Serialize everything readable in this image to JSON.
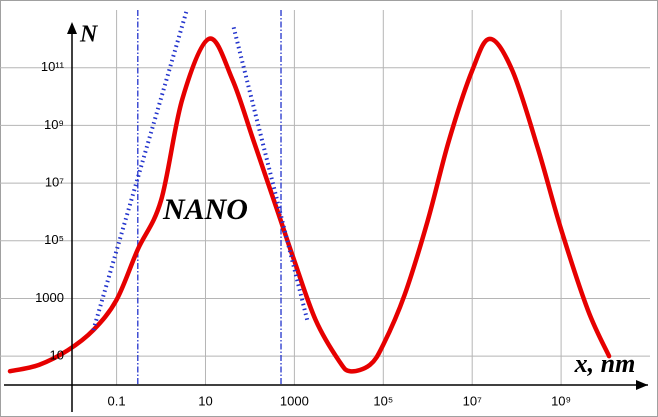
{
  "chart_data": {
    "type": "line",
    "xscale": "log",
    "yscale": "log",
    "xlabel": "x, nm",
    "ylabel": "N",
    "xlim": [
      0.0004,
      100000000000
    ],
    "ylim": [
      1,
      10000000000000
    ],
    "xticks": [
      0.1,
      10,
      1000,
      {
        "value": 100000,
        "label": "10⁵"
      },
      {
        "value": 10000000,
        "label": "10⁷"
      },
      {
        "value": 1000000000,
        "label": "10⁹"
      }
    ],
    "yticks": [
      10,
      1000,
      {
        "value": 100000,
        "label": "10⁵"
      },
      {
        "value": 10000000,
        "label": "10⁷"
      },
      {
        "value": 1000000000,
        "label": "10⁹"
      },
      {
        "value": 100000000000,
        "label": "10¹¹"
      }
    ],
    "grid": true,
    "series": [
      {
        "color": "#e60000",
        "style": "solid",
        "x": [
          0.0004,
          0.0018,
          0.008,
          0.03,
          0.1,
          0.3,
          1,
          3,
          12,
          40,
          120,
          400,
          1000,
          3000,
          10000,
          18000,
          50000,
          100000,
          300000,
          1000000,
          3000000,
          10000000,
          25000000,
          80000000,
          300000000,
          1000000000,
          4000000000,
          12000000000
        ],
        "values": [
          3,
          5,
          16,
          80,
          900,
          50000,
          2500000,
          8000000000,
          1000000000000,
          40000000000,
          300000000,
          1300000,
          20000,
          180,
          7,
          3,
          5,
          25,
          1300,
          500000,
          300000000,
          80000000000,
          1000000000000,
          80000000000,
          160000000,
          250000,
          400,
          10
        ]
      },
      {
        "color": "#2233cc",
        "style": "dotted",
        "x": [
          0.03,
          3.8
        ],
        "values": [
          80,
          10000000000000
        ]
      },
      {
        "color": "#2233cc",
        "style": "dotted",
        "x": [
          43,
          2000
        ],
        "values": [
          2500000000000,
          150
        ]
      }
    ],
    "vlines": {
      "color": "#2233cc",
      "x": [
        0.3,
        500
      ]
    },
    "annotations": [
      {
        "text": "NANO",
        "x": 10,
        "y": 1000000
      }
    ]
  }
}
